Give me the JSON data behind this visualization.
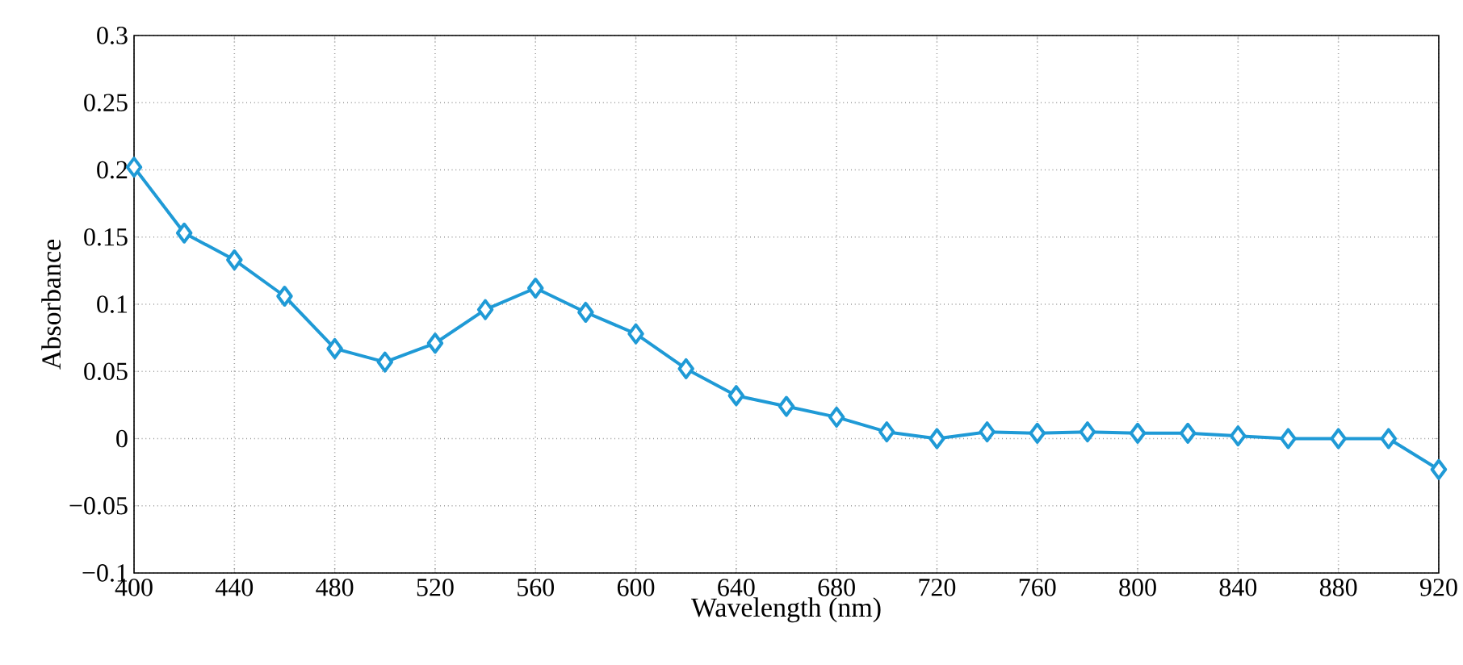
{
  "chart_data": {
    "type": "line",
    "xlabel": "Wavelength (nm)",
    "ylabel": "Absorbance",
    "x": [
      400,
      420,
      440,
      460,
      480,
      500,
      520,
      540,
      560,
      580,
      600,
      620,
      640,
      660,
      680,
      700,
      720,
      740,
      760,
      780,
      800,
      820,
      840,
      860,
      880,
      900,
      920
    ],
    "series": [
      {
        "color": "#1f9ad6",
        "values": [
          0.202,
          0.153,
          0.133,
          0.106,
          0.067,
          0.057,
          0.071,
          0.096,
          0.112,
          0.094,
          0.078,
          0.052,
          0.032,
          0.024,
          0.016,
          0.005,
          0.0,
          0.005,
          0.004,
          0.005,
          0.004,
          0.004,
          0.002,
          0.0,
          0.0,
          0.0,
          -0.023
        ]
      }
    ],
    "xlim": [
      400,
      920
    ],
    "xticks": [
      400,
      440,
      480,
      520,
      560,
      600,
      640,
      680,
      720,
      760,
      800,
      840,
      880,
      920
    ],
    "ylim": [
      -0.1,
      0.3
    ],
    "yticks": [
      {
        "value": -0.1,
        "label": "−0.1"
      },
      {
        "value": -0.05,
        "label": "−0.05"
      },
      0,
      0.05,
      0.1,
      0.15,
      0.2,
      0.25,
      0.3
    ],
    "grid": true,
    "marker": "diamond",
    "line_style": "solid"
  }
}
